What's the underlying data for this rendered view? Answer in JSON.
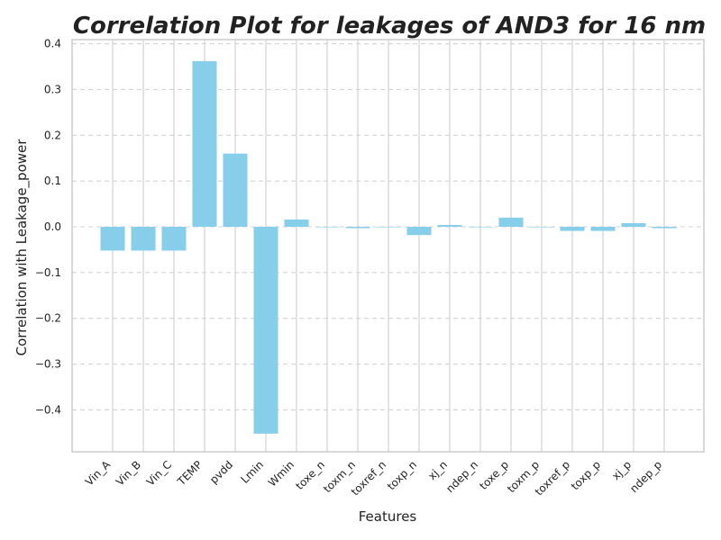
{
  "chart_data": {
    "type": "bar",
    "title": "Correlation Plot for leakages of AND3 for 16 nm",
    "xlabel": "Features",
    "ylabel": "Correlation with Leakage_power",
    "categories": [
      "Vin_A",
      "Vin_B",
      "Vin_C",
      "TEMP",
      "pvdd",
      "Lmin",
      "Wmin",
      "toxe_n",
      "toxm_n",
      "toxref_n",
      "toxp_n",
      "xj_n",
      "ndep_n",
      "toxe_p",
      "toxm_p",
      "toxref_p",
      "toxp_p",
      "xj_p",
      "ndep_p"
    ],
    "values": [
      -0.052,
      -0.052,
      -0.052,
      0.362,
      0.16,
      -0.452,
      0.016,
      0.0,
      -0.003,
      0.0,
      -0.018,
      0.004,
      0.0,
      0.02,
      0.0,
      -0.009,
      -0.009,
      0.008,
      -0.003
    ],
    "yticks": [
      -0.4,
      -0.3,
      -0.2,
      -0.1,
      0.0,
      0.1,
      0.2,
      0.3,
      0.4
    ],
    "ytick_labels": [
      "−0.4",
      "−0.3",
      "−0.2",
      "−0.1",
      "0.0",
      "0.1",
      "0.2",
      "0.3",
      "0.4"
    ],
    "ylim": [
      -0.49,
      0.41
    ],
    "grid": {
      "vertical": "solid",
      "horizontal": "dashed"
    },
    "bar_color": "#87CEEB",
    "grid_color": "#d3d3d3",
    "spine_color": "#cccccc"
  }
}
